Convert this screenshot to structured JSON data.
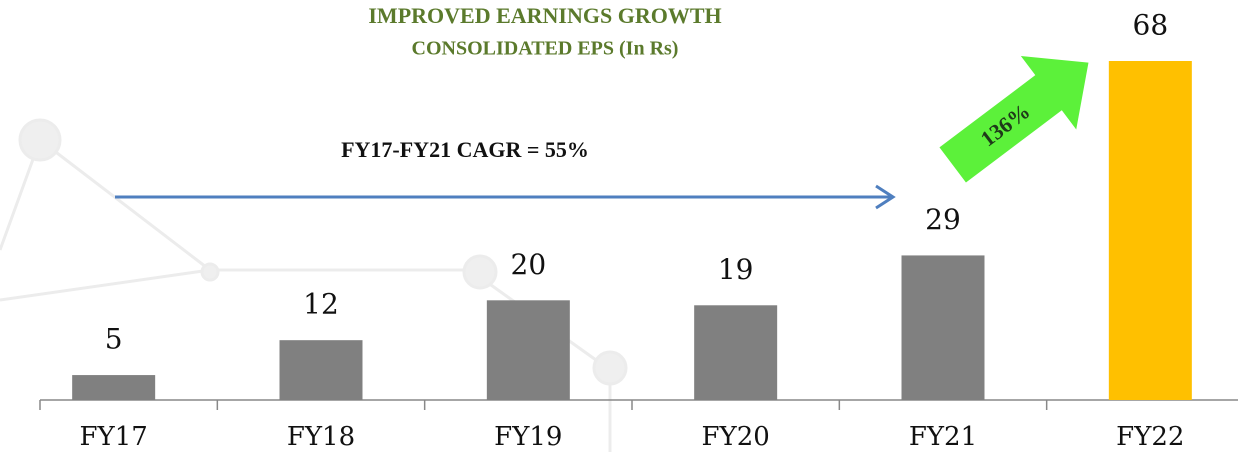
{
  "chart_data": {
    "type": "bar",
    "title": "IMPROVED EARNINGS GROWTH",
    "subtitle": "CONSOLIDATED EPS (In Rs)",
    "categories": [
      "FY17",
      "FY18",
      "FY19",
      "FY20",
      "FY21",
      "FY22"
    ],
    "values": [
      5,
      12,
      20,
      19,
      29,
      68
    ],
    "colors": [
      "#808080",
      "#808080",
      "#808080",
      "#808080",
      "#808080",
      "#ffc000"
    ],
    "ylim": [
      0,
      68
    ],
    "annotations": [
      "FY17-FY21 CAGR = 55%",
      "136%"
    ]
  }
}
